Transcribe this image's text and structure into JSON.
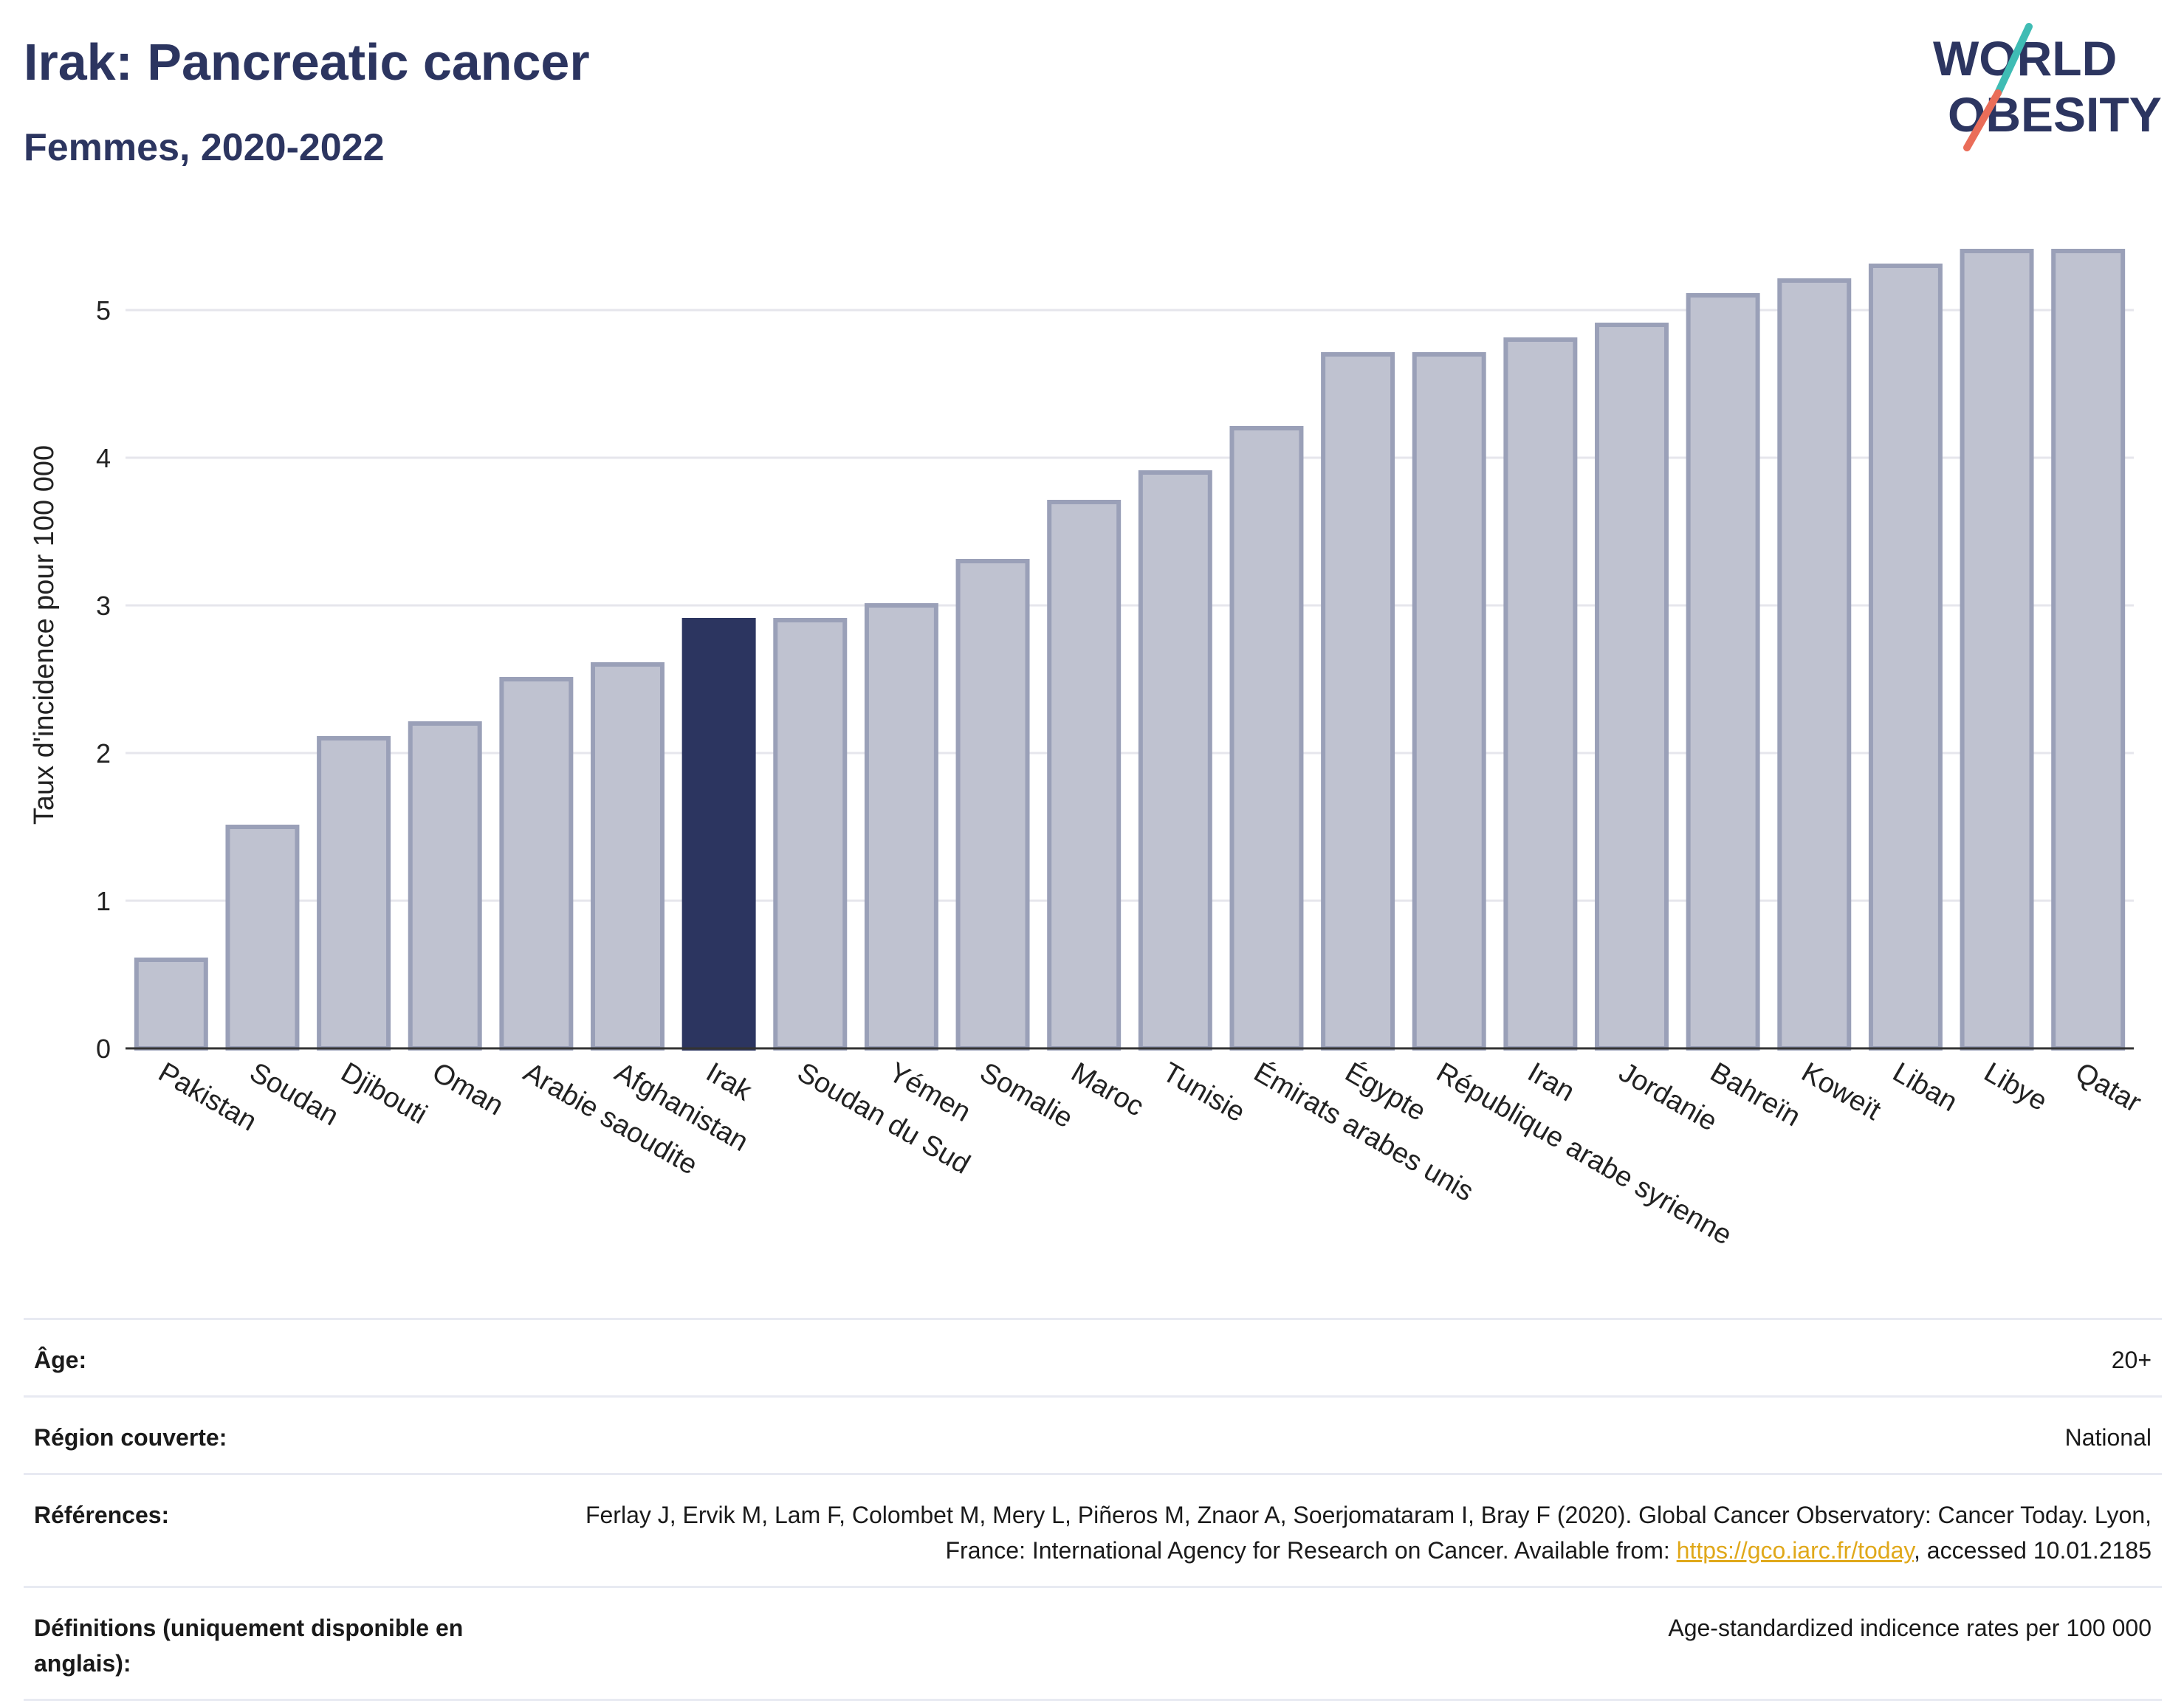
{
  "header": {
    "title": "Irak: Pancreatic cancer",
    "subtitle": "Femmes, 2020-2022"
  },
  "logo": {
    "line1": "WORLD",
    "line2": "OBESITY",
    "slash_colors": [
      "#3fbcb4",
      "#ea6d59"
    ],
    "text_color": "#2c3560"
  },
  "chart_data": {
    "type": "bar",
    "categories": [
      "Pakistan",
      "Soudan",
      "Djibouti",
      "Oman",
      "Arabie saoudite",
      "Afghanistan",
      "Irak",
      "Soudan du Sud",
      "Yémen",
      "Somalie",
      "Maroc",
      "Tunisie",
      "Émirats arabes unis",
      "Égypte",
      "République arabe syrienne",
      "Iran",
      "Jordanie",
      "Bahreïn",
      "Koweït",
      "Liban",
      "Libye",
      "Qatar"
    ],
    "values": [
      0.6,
      1.5,
      2.1,
      2.2,
      2.5,
      2.6,
      2.9,
      2.9,
      3.0,
      3.3,
      3.7,
      3.9,
      4.2,
      4.7,
      4.7,
      4.8,
      4.9,
      5.1,
      5.2,
      5.3,
      5.4,
      5.4
    ],
    "highlight": "Irak",
    "ylabel": "Taux d'incidence pour 100 000",
    "yticks": [
      0,
      1,
      2,
      3,
      4,
      5
    ],
    "ylim": [
      0,
      5.6
    ],
    "grid": true,
    "colors": {
      "bar_fill": "#bfc2d0",
      "bar_stroke": "#9aa0b8",
      "highlight_fill": "#2c3560",
      "grid": "#e6e6ec",
      "axis": "#333333"
    }
  },
  "meta": {
    "age_label": "Âge:",
    "age_value": "20+",
    "region_label": "Région couverte:",
    "region_value": "National",
    "references_label": "Références:",
    "references_text": "Ferlay J, Ervik M, Lam F, Colombet M, Mery L, Piñeros M, Znaor A, Soerjomataram I, Bray F (2020). Global Cancer Observatory: Cancer Today. Lyon, France: International Agency for Research on Cancer. Available from: ",
    "references_link": "https://gco.iarc.fr/today",
    "references_suffix": ", accessed 10.01.2185",
    "definitions_label": "Définitions (uniquement disponible en anglais):",
    "definitions_value": "Age-standardized indicence rates per 100 000"
  }
}
